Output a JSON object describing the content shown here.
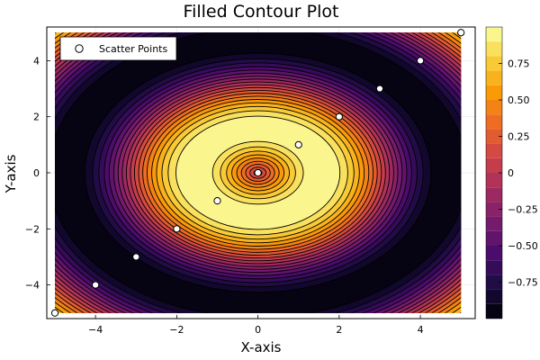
{
  "chart_data": {
    "type": "contour",
    "title": "Filled Contour Plot",
    "xlabel": "X-axis",
    "ylabel": "Y-axis",
    "xlim": [
      -5.2,
      5.35
    ],
    "ylim": [
      -5.2,
      5.2
    ],
    "x_ticks": [
      -4,
      -2,
      0,
      2,
      4
    ],
    "y_ticks": [
      -4,
      -2,
      0,
      2,
      4
    ],
    "x_tick_labels": [
      "−4",
      "−2",
      "0",
      "2",
      "4"
    ],
    "y_tick_labels": [
      "−4",
      "−2",
      "0",
      "2",
      "4"
    ],
    "function": "sin(sqrt(x^2 + y^2))",
    "field_domain": {
      "x": [
        -5,
        5
      ],
      "y": [
        -5,
        5
      ]
    },
    "levels": [
      -1.0,
      -0.9,
      -0.8,
      -0.7,
      -0.6,
      -0.5,
      -0.4,
      -0.3,
      -0.2,
      -0.1,
      0.0,
      0.1,
      0.2,
      0.3,
      0.4,
      0.5,
      0.6,
      0.7,
      0.8,
      0.9,
      1.0
    ],
    "colormap": "inferno",
    "colormap_stops": [
      "#000004",
      "#1b0c41",
      "#4a0c6b",
      "#781c6d",
      "#a52c60",
      "#cf4446",
      "#ed6925",
      "#fb9b06",
      "#f7d13d",
      "#fcffa4"
    ],
    "colorbar": {
      "range": [
        -1.0,
        1.0
      ],
      "tick_values": [
        -0.75,
        -0.5,
        -0.25,
        0,
        0.25,
        0.5,
        0.75
      ],
      "tick_labels": [
        "−0.75",
        "−0.50",
        "−0.25",
        "0",
        "0.25",
        "0.50",
        "0.75"
      ]
    },
    "series": [
      {
        "name": "Scatter Points",
        "type": "scatter",
        "x": [
          -5,
          -4,
          -3,
          -2,
          -1,
          0,
          1,
          2,
          3,
          4,
          5
        ],
        "y": [
          -5,
          -4,
          -3,
          -2,
          -1,
          0,
          1,
          2,
          3,
          4,
          5
        ]
      }
    ],
    "legend_position": "top-left",
    "grid": true
  }
}
